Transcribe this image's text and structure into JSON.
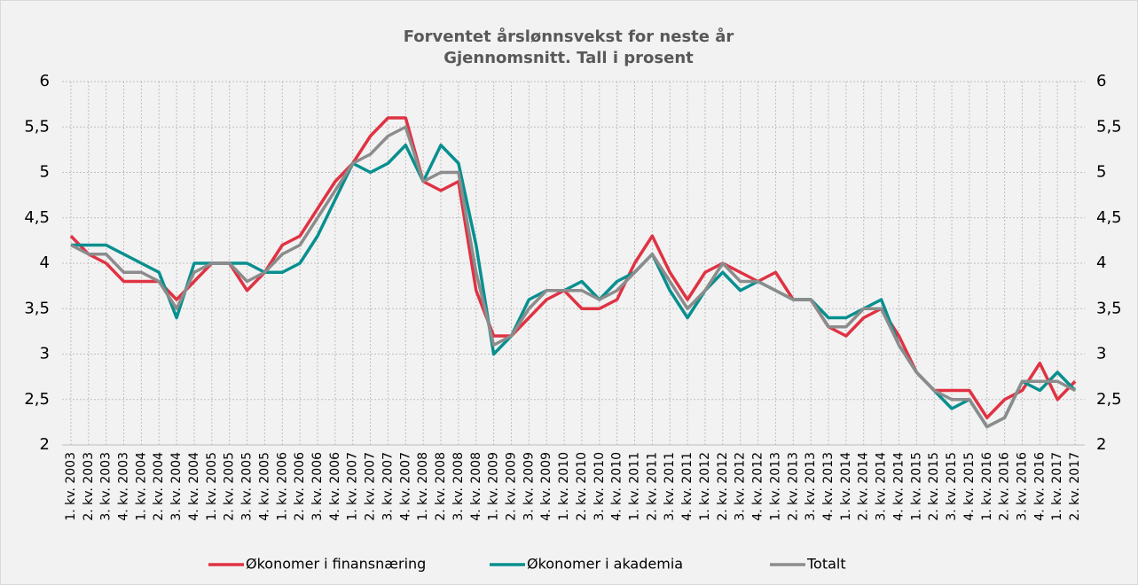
{
  "chart_data": {
    "type": "line",
    "title": "Forventet årslønnsvekst for neste år",
    "subtitle": "Gjennomsnitt. Tall i prosent",
    "categories": [
      "1. kv. 2003",
      "2. kv. 2003",
      "3. kv. 2003",
      "4. kv. 2003",
      "1. kv. 2004",
      "2. kv. 2004",
      "3. kv. 2004",
      "4. kv. 2004",
      "1. kv. 2005",
      "2. kv. 2005",
      "3. kv. 2005",
      "4. kv. 2005",
      "1. kv. 2006",
      "2. kv. 2006",
      "3. kv. 2006",
      "4. kv. 2006",
      "1. kv. 2007",
      "2. kv. 2007",
      "3. kv. 2007",
      "4. kv. 2007",
      "1. kv. 2008",
      "2. kv. 2008",
      "3. kv. 2008",
      "4. kv. 2008",
      "1. kv. 2009",
      "2. kv. 2009",
      "3. kv. 2009",
      "4. kv. 2009",
      "1. kv. 2010",
      "2. kv. 2010",
      "3. kv. 2010",
      "4. kv. 2010",
      "1. kv. 2011",
      "2. kv. 2011",
      "3. kv. 2011",
      "4. kv. 2011",
      "1. kv. 2012",
      "2. kv. 2012",
      "3. kv. 2012",
      "4. kv. 2012",
      "1. kv. 2013",
      "2. kv. 2013",
      "3. kv. 2013",
      "4. kv. 2013",
      "1. kv. 2014",
      "2. kv. 2014",
      "3. kv. 2014",
      "4. kv. 2014",
      "1. kv. 2015",
      "2. kv. 2015",
      "3. kv. 2015",
      "4. kv. 2015",
      "1. kv. 2016",
      "2. kv. 2016",
      "3. kv. 2016",
      "4. kv. 2016",
      "1. kv. 2017",
      "2. kv. 2017"
    ],
    "series": [
      {
        "name": "Økonomer i finansnæring",
        "color": "#e03243",
        "values": [
          4.3,
          4.1,
          4.0,
          3.8,
          3.8,
          3.8,
          3.6,
          3.8,
          4.0,
          4.0,
          3.7,
          3.9,
          4.2,
          4.3,
          4.6,
          4.9,
          5.1,
          5.4,
          5.6,
          5.6,
          4.9,
          4.8,
          4.9,
          3.7,
          3.2,
          3.2,
          3.4,
          3.6,
          3.7,
          3.5,
          3.5,
          3.6,
          4.0,
          4.3,
          3.9,
          3.6,
          3.9,
          4.0,
          3.9,
          3.8,
          3.9,
          3.6,
          3.6,
          3.3,
          3.2,
          3.4,
          3.5,
          3.2,
          2.8,
          2.6,
          2.6,
          2.6,
          2.3,
          2.5,
          2.6,
          2.9,
          2.5,
          2.7
        ]
      },
      {
        "name": "Økonomer i akademia",
        "color": "#088f8f",
        "values": [
          4.2,
          4.2,
          4.2,
          4.1,
          4.0,
          3.9,
          3.4,
          4.0,
          4.0,
          4.0,
          4.0,
          3.9,
          3.9,
          4.0,
          4.3,
          4.7,
          5.1,
          5.0,
          5.1,
          5.3,
          4.9,
          5.3,
          5.1,
          4.2,
          3.0,
          3.2,
          3.6,
          3.7,
          3.7,
          3.8,
          3.6,
          3.8,
          3.9,
          4.1,
          3.7,
          3.4,
          3.7,
          3.9,
          3.7,
          3.8,
          3.7,
          3.6,
          3.6,
          3.4,
          3.4,
          3.5,
          3.6,
          3.1,
          2.8,
          2.6,
          2.4,
          2.5,
          2.2,
          2.3,
          2.7,
          2.6,
          2.8,
          2.6
        ]
      },
      {
        "name": "Totalt",
        "color": "#8c8c8c",
        "values": [
          4.2,
          4.1,
          4.1,
          3.9,
          3.9,
          3.8,
          3.5,
          3.9,
          4.0,
          4.0,
          3.8,
          3.9,
          4.1,
          4.2,
          4.5,
          4.8,
          5.1,
          5.2,
          5.4,
          5.5,
          4.9,
          5.0,
          5.0,
          3.9,
          3.1,
          3.2,
          3.5,
          3.7,
          3.7,
          3.7,
          3.6,
          3.7,
          3.9,
          4.1,
          3.8,
          3.5,
          3.7,
          4.0,
          3.8,
          3.8,
          3.7,
          3.6,
          3.6,
          3.3,
          3.3,
          3.5,
          3.5,
          3.1,
          2.8,
          2.6,
          2.5,
          2.5,
          2.2,
          2.3,
          2.7,
          2.7,
          2.7,
          2.6
        ]
      }
    ],
    "ylim": [
      2,
      6
    ],
    "yticks": [
      2,
      {
        "value": 2.5,
        "label": "2,5"
      },
      3,
      {
        "value": 3.5,
        "label": "3,5"
      },
      4,
      {
        "value": 4.5,
        "label": "4,5"
      },
      5,
      {
        "value": 5.5,
        "label": "5,5"
      },
      6
    ],
    "y2lim": [
      2,
      6
    ],
    "y2ticks": [
      2,
      {
        "value": 2.5,
        "label": "2,5"
      },
      3,
      {
        "value": 3.5,
        "label": "3,5"
      },
      4,
      {
        "value": 4.5,
        "label": "4,5"
      },
      5,
      {
        "value": 5.5,
        "label": "5,5"
      },
      6
    ],
    "grid": true,
    "legend": "bottom"
  }
}
